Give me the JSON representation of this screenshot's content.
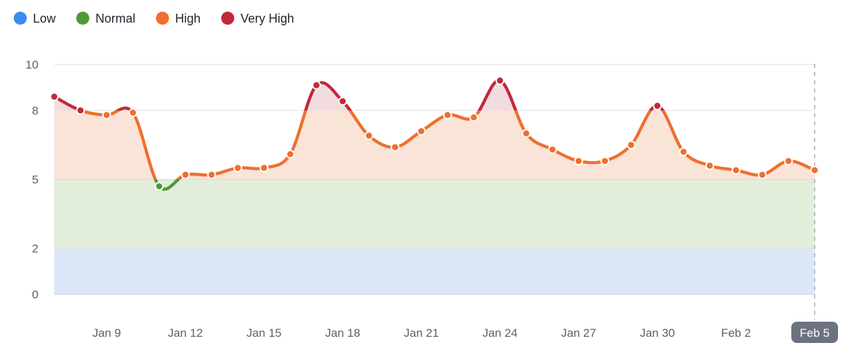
{
  "legend": {
    "items": [
      {
        "label": "Low",
        "color": "#3d8bf0",
        "level": "low"
      },
      {
        "label": "Normal",
        "color": "#4c9a34",
        "level": "normal"
      },
      {
        "label": "High",
        "color": "#ee702f",
        "level": "high"
      },
      {
        "label": "Very High",
        "color": "#c1293a",
        "level": "very_high"
      }
    ]
  },
  "chart_data": {
    "type": "line",
    "ylim": [
      0,
      10
    ],
    "y_ticks": [
      0,
      2,
      5,
      8,
      10
    ],
    "x_tick_labels": [
      "Jan 9",
      "Jan 12",
      "Jan 15",
      "Jan 18",
      "Jan 21",
      "Jan 24",
      "Jan 27",
      "Jan 30",
      "Feb 2",
      "Feb 5"
    ],
    "today_label": "Feb 5",
    "grid": "horizontal-only",
    "legend_position": "top-left",
    "bands": [
      {
        "name": "Low",
        "range": [
          0,
          2
        ]
      },
      {
        "name": "Normal",
        "range": [
          2,
          5
        ]
      },
      {
        "name": "High",
        "range": [
          5,
          8
        ]
      },
      {
        "name": "Very High",
        "range": [
          8,
          10
        ]
      }
    ],
    "points": [
      {
        "date": "Jan 7",
        "value": 8.6,
        "level": "very_high"
      },
      {
        "date": "Jan 8",
        "value": 8.0,
        "level": "very_high"
      },
      {
        "date": "Jan 9",
        "value": 7.8,
        "level": "high"
      },
      {
        "date": "Jan 10",
        "value": 7.9,
        "level": "high"
      },
      {
        "date": "Jan 11",
        "value": 4.7,
        "level": "normal"
      },
      {
        "date": "Jan 12",
        "value": 5.2,
        "level": "high"
      },
      {
        "date": "Jan 13",
        "value": 5.2,
        "level": "high"
      },
      {
        "date": "Jan 14",
        "value": 5.5,
        "level": "high"
      },
      {
        "date": "Jan 15",
        "value": 5.5,
        "level": "high"
      },
      {
        "date": "Jan 16",
        "value": 6.1,
        "level": "high"
      },
      {
        "date": "Jan 17",
        "value": 9.1,
        "level": "very_high"
      },
      {
        "date": "Jan 18",
        "value": 8.4,
        "level": "very_high"
      },
      {
        "date": "Jan 19",
        "value": 6.9,
        "level": "high"
      },
      {
        "date": "Jan 20",
        "value": 6.4,
        "level": "high"
      },
      {
        "date": "Jan 21",
        "value": 7.1,
        "level": "high"
      },
      {
        "date": "Jan 22",
        "value": 7.8,
        "level": "high"
      },
      {
        "date": "Jan 23",
        "value": 7.7,
        "level": "high"
      },
      {
        "date": "Jan 24",
        "value": 9.3,
        "level": "very_high"
      },
      {
        "date": "Jan 25",
        "value": 7.0,
        "level": "high"
      },
      {
        "date": "Jan 26",
        "value": 6.3,
        "level": "high"
      },
      {
        "date": "Jan 27",
        "value": 5.8,
        "level": "high"
      },
      {
        "date": "Jan 28",
        "value": 5.8,
        "level": "high"
      },
      {
        "date": "Jan 29",
        "value": 6.5,
        "level": "high"
      },
      {
        "date": "Jan 30",
        "value": 8.2,
        "level": "very_high"
      },
      {
        "date": "Jan 31",
        "value": 6.2,
        "level": "high"
      },
      {
        "date": "Feb 1",
        "value": 5.6,
        "level": "high"
      },
      {
        "date": "Feb 2",
        "value": 5.4,
        "level": "high"
      },
      {
        "date": "Feb 3",
        "value": 5.2,
        "level": "high"
      },
      {
        "date": "Feb 4",
        "value": 5.8,
        "level": "high"
      },
      {
        "date": "Feb 5",
        "value": 5.4,
        "level": "high"
      }
    ],
    "colors": {
      "low": "#3d8bf0",
      "normal": "#4c9a34",
      "high": "#ee702f",
      "very_high": "#c1293a",
      "band_low_fill": "#dbe7f7",
      "band_normal_fill": "#e2edda",
      "area_high_fill": "#fae3d7",
      "area_very_high_fill": "#f2dce1",
      "grid": "#e3e4ea",
      "axis_line": "#d7d9de",
      "axis_text": "#5b6069",
      "dashed_line": "#a9adb6",
      "today_badge_bg": "#6c7280",
      "today_badge_text": "#ffffff",
      "dot_border": "#ffffff"
    }
  }
}
